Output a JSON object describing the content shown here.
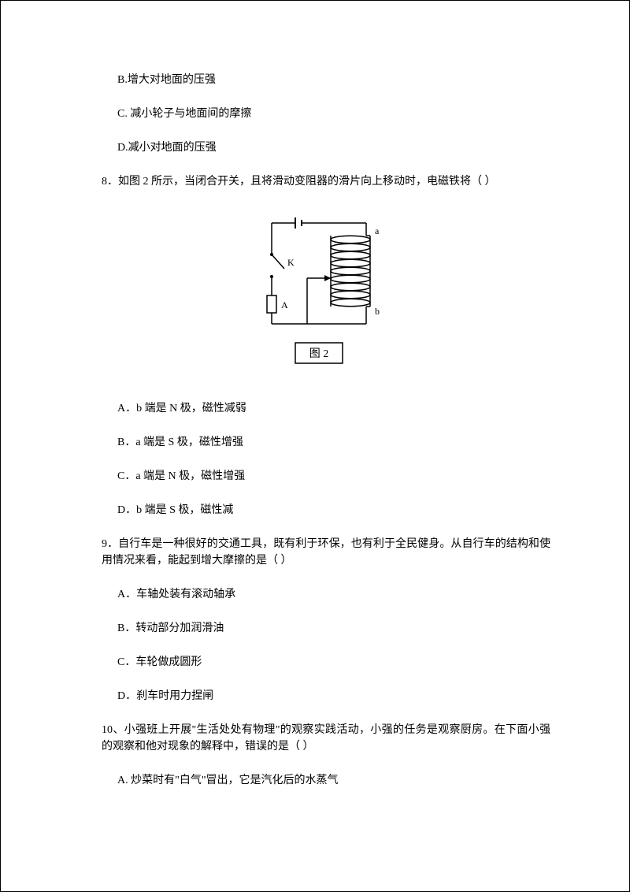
{
  "q7": {
    "optB": "B.增大对地面的压强",
    "optC": "C. 减小轮子与地面间的摩擦",
    "optD": "D.减小对地面的压强"
  },
  "q8": {
    "stem": "8．如图 2 所示，当闭合开关，且将滑动变阻器的滑片向上移动时，电磁铁将（    ）",
    "optA": "A．b 端是 N 极，磁性减弱",
    "optB": "B．a 端是 S 极，磁性增强",
    "optC": "C．a 端是 N 极，磁性增强",
    "optD": "D．b 端是 S 极，磁性减"
  },
  "q9": {
    "stem": "9．自行车是一种很好的交通工具，既有利于环保，也有利于全民健身。从自行车的结构和使用情况来看，能起到增大摩擦的是（      ）",
    "optA": "A．车轴处装有滚动轴承",
    "optB": "B．转动部分加润滑油",
    "optC": "C．车轮做成圆形",
    "optD": "D．刹车时用力捏闸"
  },
  "q10": {
    "stem": "10、小强班上开展\"生活处处有物理\"的观察实践活动，小强的任务是观察厨房。在下面小强的观察和他对现象的解释中，错误的是（      ）",
    "optA": "A. 炒菜时有\"白气\"冒出，它是汽化后的水蒸气"
  },
  "fig": {
    "label_a": "a",
    "label_b": "b",
    "label_K": "K",
    "label_A": "A",
    "caption": "图 2",
    "stroke": "#000000",
    "bg": "#ffffff",
    "coil_turns": 9
  }
}
